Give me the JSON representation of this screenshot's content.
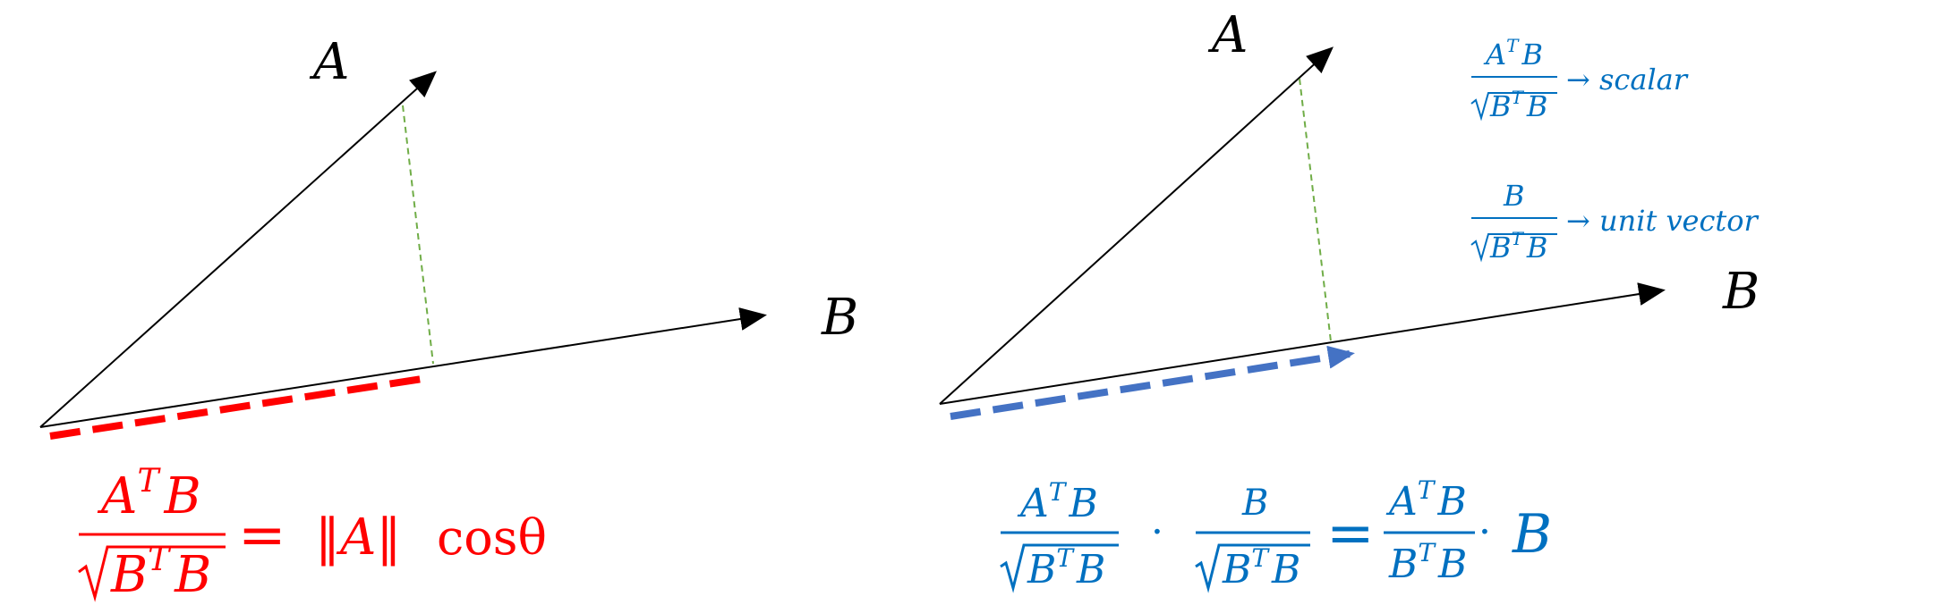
{
  "colors": {
    "axis": "#000000",
    "projection_left": "#ff0000",
    "projection_right": "#4472c4",
    "perpendicular": "#70ad47",
    "formula_left": "#ff0000",
    "formula_right": "#0070c0"
  },
  "left_diagram": {
    "vector_a_label": "A",
    "vector_b_label": "B",
    "formula": {
      "numerator_base": "A",
      "numerator_sup": "T",
      "numerator_rest": "B",
      "denominator_base": "B",
      "denominator_sup": "T",
      "denominator_rest": "B",
      "equals": "=",
      "norm_text": "‖A‖",
      "cos_text": "cosθ"
    }
  },
  "right_diagram": {
    "vector_a_label": "A",
    "vector_b_label": "B",
    "note_scalar": {
      "numerator_base": "A",
      "numerator_sup": "T",
      "numerator_rest": "B",
      "denominator_base": "B",
      "denominator_sup": "T",
      "denominator_rest": "B",
      "arrow_text": "→ scalar"
    },
    "note_unit": {
      "numerator": "B",
      "denominator_base": "B",
      "denominator_sup": "T",
      "denominator_rest": "B",
      "arrow_text": "→ unit vector"
    },
    "formula": {
      "f1_num_base": "A",
      "f1_num_sup": "T",
      "f1_num_rest": "B",
      "f1_den_base": "B",
      "f1_den_sup": "T",
      "f1_den_rest": "B",
      "dot1": "·",
      "f2_num": "B",
      "f2_den_base": "B",
      "f2_den_sup": "T",
      "f2_den_rest": "B",
      "equals": "=",
      "f3_num_base": "A",
      "f3_num_sup": "T",
      "f3_num_rest": "B",
      "f3_den_base": "B",
      "f3_den_sup": "T",
      "f3_den_rest": "B",
      "dot2": "·",
      "tail": "B"
    }
  }
}
